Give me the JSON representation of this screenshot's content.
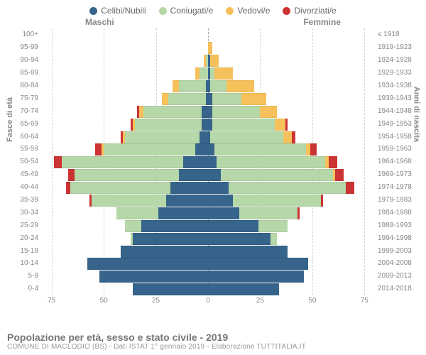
{
  "colors": {
    "celibe": "#36648b",
    "coniugato": "#b6d7a8",
    "vedovo": "#f6c15b",
    "divorziato": "#cc3333",
    "background": "#ffffff",
    "grid": "#cccccc",
    "axis_text": "#888888"
  },
  "legend": {
    "items": [
      {
        "key": "celibe",
        "label": "Celibi/Nubili"
      },
      {
        "key": "coniugato",
        "label": "Coniugati/e"
      },
      {
        "key": "vedovo",
        "label": "Vedovi/e"
      },
      {
        "key": "divorziato",
        "label": "Divorziati/e"
      }
    ]
  },
  "gender": {
    "male": "Maschi",
    "female": "Femmine"
  },
  "axis": {
    "left_title": "Fasce di età",
    "right_title": "Anni di nascita",
    "x_ticks": [
      75,
      50,
      25,
      0,
      25,
      50,
      75
    ],
    "x_max": 80
  },
  "title": "Popolazione per età, sesso e stato civile - 2019",
  "subtitle": "COMUNE DI MACLODIO (BS) - Dati ISTAT 1° gennaio 2019 - Elaborazione TUTTITALIA.IT",
  "rows": [
    {
      "age": "100+",
      "birth": "≤ 1918",
      "m": {
        "c": 0,
        "co": 0,
        "v": 0,
        "d": 0
      },
      "f": {
        "c": 0,
        "co": 0,
        "v": 0,
        "d": 0
      }
    },
    {
      "age": "95-99",
      "birth": "1919-1923",
      "m": {
        "c": 0,
        "co": 0,
        "v": 0,
        "d": 0
      },
      "f": {
        "c": 0,
        "co": 0,
        "v": 2,
        "d": 0
      }
    },
    {
      "age": "90-94",
      "birth": "1924-1928",
      "m": {
        "c": 0,
        "co": 1,
        "v": 1,
        "d": 0
      },
      "f": {
        "c": 1,
        "co": 0,
        "v": 4,
        "d": 0
      }
    },
    {
      "age": "85-89",
      "birth": "1929-1933",
      "m": {
        "c": 0,
        "co": 4,
        "v": 2,
        "d": 0
      },
      "f": {
        "c": 1,
        "co": 2,
        "v": 9,
        "d": 0
      }
    },
    {
      "age": "80-84",
      "birth": "1934-1938",
      "m": {
        "c": 1,
        "co": 13,
        "v": 3,
        "d": 0
      },
      "f": {
        "c": 1,
        "co": 8,
        "v": 13,
        "d": 0
      }
    },
    {
      "age": "75-79",
      "birth": "1939-1943",
      "m": {
        "c": 1,
        "co": 18,
        "v": 3,
        "d": 0
      },
      "f": {
        "c": 2,
        "co": 14,
        "v": 12,
        "d": 0
      }
    },
    {
      "age": "70-74",
      "birth": "1944-1948",
      "m": {
        "c": 3,
        "co": 28,
        "v": 2,
        "d": 1
      },
      "f": {
        "c": 2,
        "co": 23,
        "v": 8,
        "d": 0
      }
    },
    {
      "age": "65-69",
      "birth": "1949-1953",
      "m": {
        "c": 3,
        "co": 32,
        "v": 1,
        "d": 1
      },
      "f": {
        "c": 2,
        "co": 30,
        "v": 5,
        "d": 1
      }
    },
    {
      "age": "60-64",
      "birth": "1954-1958",
      "m": {
        "c": 4,
        "co": 36,
        "v": 1,
        "d": 1
      },
      "f": {
        "c": 1,
        "co": 35,
        "v": 4,
        "d": 2
      }
    },
    {
      "age": "55-59",
      "birth": "1959-1963",
      "m": {
        "c": 6,
        "co": 44,
        "v": 1,
        "d": 3
      },
      "f": {
        "c": 3,
        "co": 44,
        "v": 2,
        "d": 3
      }
    },
    {
      "age": "50-54",
      "birth": "1964-1968",
      "m": {
        "c": 12,
        "co": 58,
        "v": 0,
        "d": 4
      },
      "f": {
        "c": 4,
        "co": 52,
        "v": 2,
        "d": 4
      }
    },
    {
      "age": "45-49",
      "birth": "1969-1973",
      "m": {
        "c": 14,
        "co": 50,
        "v": 0,
        "d": 3
      },
      "f": {
        "c": 6,
        "co": 54,
        "v": 1,
        "d": 4
      }
    },
    {
      "age": "40-44",
      "birth": "1974-1978",
      "m": {
        "c": 18,
        "co": 48,
        "v": 0,
        "d": 2
      },
      "f": {
        "c": 10,
        "co": 56,
        "v": 0,
        "d": 4
      }
    },
    {
      "age": "35-39",
      "birth": "1979-1983",
      "m": {
        "c": 20,
        "co": 36,
        "v": 0,
        "d": 1
      },
      "f": {
        "c": 12,
        "co": 42,
        "v": 0,
        "d": 1
      }
    },
    {
      "age": "30-34",
      "birth": "1984-1988",
      "m": {
        "c": 24,
        "co": 20,
        "v": 0,
        "d": 0
      },
      "f": {
        "c": 15,
        "co": 28,
        "v": 0,
        "d": 1
      }
    },
    {
      "age": "25-29",
      "birth": "1989-1993",
      "m": {
        "c": 32,
        "co": 8,
        "v": 0,
        "d": 0
      },
      "f": {
        "c": 24,
        "co": 14,
        "v": 0,
        "d": 0
      }
    },
    {
      "age": "20-24",
      "birth": "1994-1998",
      "m": {
        "c": 36,
        "co": 1,
        "v": 0,
        "d": 0
      },
      "f": {
        "c": 30,
        "co": 3,
        "v": 0,
        "d": 0
      }
    },
    {
      "age": "15-19",
      "birth": "1999-2003",
      "m": {
        "c": 42,
        "co": 0,
        "v": 0,
        "d": 0
      },
      "f": {
        "c": 38,
        "co": 0,
        "v": 0,
        "d": 0
      }
    },
    {
      "age": "10-14",
      "birth": "2004-2008",
      "m": {
        "c": 58,
        "co": 0,
        "v": 0,
        "d": 0
      },
      "f": {
        "c": 48,
        "co": 0,
        "v": 0,
        "d": 0
      }
    },
    {
      "age": "5-9",
      "birth": "2009-2013",
      "m": {
        "c": 52,
        "co": 0,
        "v": 0,
        "d": 0
      },
      "f": {
        "c": 46,
        "co": 0,
        "v": 0,
        "d": 0
      }
    },
    {
      "age": "0-4",
      "birth": "2014-2018",
      "m": {
        "c": 36,
        "co": 0,
        "v": 0,
        "d": 0
      },
      "f": {
        "c": 34,
        "co": 0,
        "v": 0,
        "d": 0
      }
    }
  ]
}
